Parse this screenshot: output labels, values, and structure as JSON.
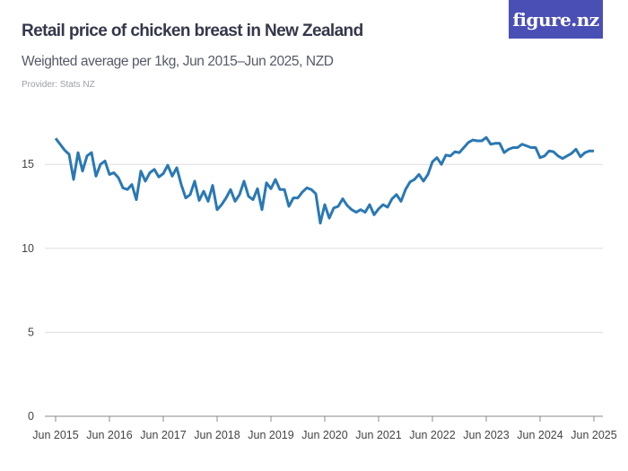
{
  "header": {
    "title": "Retail price of chicken breast in New Zealand",
    "subtitle": "Weighted average per 1kg, Jun 2015–Jun 2025, NZD",
    "provider": "Provider: Stats NZ",
    "logo": "figure.nz"
  },
  "colors": {
    "line": "#2a78b4",
    "logo_bg": "#4a4fb5",
    "grid": "#dddddd"
  },
  "chart_data": {
    "type": "line",
    "title": "Retail price of chicken breast in New Zealand",
    "xlabel": "",
    "ylabel": "",
    "ylim": [
      0,
      17
    ],
    "yticks": [
      0,
      5,
      10,
      15
    ],
    "ytick_labels": [
      "0",
      "5",
      "10",
      "15"
    ],
    "xtick_labels": [
      "Jun 2015",
      "Jun 2016",
      "Jun 2017",
      "Jun 2018",
      "Jun 2019",
      "Jun 2020",
      "Jun 2021",
      "Jun 2022",
      "Jun 2023",
      "Jun 2024",
      "Jun 2025"
    ],
    "x_start": "Jun 2015",
    "x_end": "Jun 2025",
    "frequency": "monthly",
    "grid": true,
    "legend": "none",
    "series": [
      {
        "values": [
          16.55,
          16.2,
          15.85,
          15.6,
          14.1,
          15.7,
          14.6,
          15.5,
          15.7,
          14.3,
          15.0,
          15.2,
          14.4,
          14.5,
          14.2,
          13.6,
          13.5,
          13.8,
          12.9,
          14.6,
          14.0,
          14.5,
          14.7,
          14.25,
          14.45,
          14.95,
          14.3,
          14.8,
          13.8,
          13.0,
          13.2,
          14.0,
          12.85,
          13.4,
          12.8,
          13.75,
          12.3,
          12.6,
          13.0,
          13.5,
          12.8,
          13.2,
          14.0,
          13.1,
          12.9,
          13.55,
          12.3,
          13.9,
          13.55,
          14.1,
          13.5,
          13.5,
          12.5,
          13.0,
          13.0,
          13.35,
          13.6,
          13.5,
          13.25,
          11.5,
          12.6,
          11.8,
          12.4,
          12.5,
          12.95,
          12.55,
          12.3,
          12.15,
          12.3,
          12.15,
          12.6,
          12.0,
          12.35,
          12.6,
          12.45,
          12.95,
          13.2,
          12.8,
          13.5,
          13.95,
          14.1,
          14.4,
          14.0,
          14.4,
          15.15,
          15.4,
          15.0,
          15.55,
          15.5,
          15.75,
          15.7,
          16.0,
          16.3,
          16.45,
          16.4,
          16.4,
          16.6,
          16.2,
          16.25,
          16.25,
          15.7,
          15.9,
          16.0,
          16.0,
          16.2,
          16.1,
          16.0,
          16.0,
          15.4,
          15.5,
          15.8,
          15.75,
          15.5,
          15.35,
          15.5,
          15.65,
          15.9,
          15.45,
          15.7,
          15.8,
          15.8
        ]
      }
    ]
  }
}
